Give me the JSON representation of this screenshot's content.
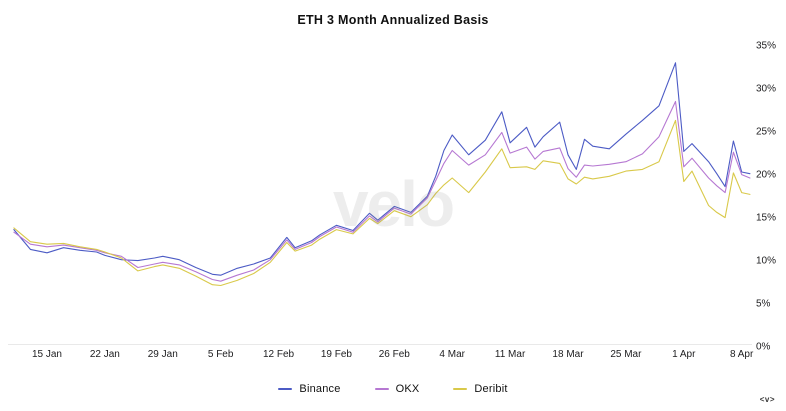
{
  "page": {
    "watermark": "velo",
    "logo": "<v>"
  },
  "chart_data": {
    "type": "line",
    "title": "ETH 3 Month Annualized Basis",
    "xlabel": "",
    "ylabel": "",
    "ylim": [
      0,
      35
    ],
    "grid": false,
    "legend_position": "bottom",
    "y_ticks": [
      "35%",
      "30%",
      "25%",
      "20%",
      "15%",
      "10%",
      "5%",
      "0%"
    ],
    "x_ticks": [
      {
        "label": "15 Jan",
        "day": 4
      },
      {
        "label": "22 Jan",
        "day": 11
      },
      {
        "label": "29 Jan",
        "day": 18
      },
      {
        "label": "5 Feb",
        "day": 25
      },
      {
        "label": "12 Feb",
        "day": 32
      },
      {
        "label": "19 Feb",
        "day": 39
      },
      {
        "label": "26 Feb",
        "day": 46
      },
      {
        "label": "4 Mar",
        "day": 53
      },
      {
        "label": "11 Mar",
        "day": 60
      },
      {
        "label": "18 Mar",
        "day": 67
      },
      {
        "label": "25 Mar",
        "day": 74
      },
      {
        "label": "1 Apr",
        "day": 81
      },
      {
        "label": "8 Apr",
        "day": 88
      }
    ],
    "dates": [
      "11 Jan",
      "13 Jan",
      "15 Jan",
      "17 Jan",
      "19 Jan",
      "21 Jan",
      "22 Jan",
      "24 Jan",
      "26 Jan",
      "28 Jan",
      "29 Jan",
      "31 Jan",
      "2 Feb",
      "4 Feb",
      "5 Feb",
      "7 Feb",
      "9 Feb",
      "11 Feb",
      "13 Feb",
      "14 Feb",
      "16 Feb",
      "17 Feb",
      "19 Feb",
      "21 Feb",
      "23 Feb",
      "24 Feb",
      "26 Feb",
      "28 Feb",
      "1 Mar",
      "2 Mar",
      "3 Mar",
      "4 Mar",
      "6 Mar",
      "8 Mar",
      "10 Mar",
      "11 Mar",
      "13 Mar",
      "14 Mar",
      "15 Mar",
      "17 Mar",
      "18 Mar",
      "19 Mar",
      "20 Mar",
      "21 Mar",
      "23 Mar",
      "25 Mar",
      "27 Mar",
      "29 Mar",
      "31 Mar",
      "1 Apr",
      "2 Apr",
      "4 Apr",
      "5 Apr",
      "6 Apr",
      "7 Apr",
      "8 Apr",
      "9 Apr"
    ],
    "x_days": [
      0,
      2,
      4,
      6,
      8,
      10,
      11,
      13,
      15,
      17,
      18,
      20,
      22,
      24,
      25,
      27,
      29,
      31,
      33,
      34,
      36,
      37,
      39,
      41,
      43,
      44,
      46,
      48,
      50,
      51,
      52,
      53,
      55,
      57,
      59,
      60,
      62,
      63,
      64,
      66,
      67,
      68,
      69,
      70,
      72,
      74,
      76,
      78,
      80,
      81,
      82,
      84,
      85,
      86,
      87,
      88,
      89
    ],
    "series": [
      {
        "name": "Binance",
        "color": "#4c5bc5",
        "values": [
          13.3,
          11.0,
          10.6,
          11.2,
          10.9,
          10.7,
          10.3,
          9.8,
          9.7,
          10.0,
          10.2,
          9.8,
          8.9,
          8.1,
          8.0,
          8.8,
          9.3,
          10.0,
          12.4,
          11.2,
          12.0,
          12.7,
          13.8,
          13.2,
          15.2,
          14.4,
          16.0,
          15.3,
          17.2,
          19.5,
          22.5,
          24.3,
          22.0,
          23.7,
          27.0,
          23.4,
          25.2,
          22.9,
          24.1,
          25.8,
          22.0,
          20.3,
          23.8,
          23.0,
          22.7,
          24.4,
          26.0,
          27.7,
          32.7,
          22.4,
          23.3,
          21.2,
          19.8,
          18.3,
          23.6,
          20.0,
          19.8
        ]
      },
      {
        "name": "OKX",
        "color": "#b678d2",
        "values": [
          13.0,
          11.6,
          11.3,
          11.5,
          11.2,
          10.9,
          10.6,
          10.2,
          8.9,
          9.3,
          9.5,
          9.2,
          8.4,
          7.5,
          7.3,
          8.0,
          8.6,
          9.8,
          12.1,
          11.0,
          11.8,
          12.5,
          13.6,
          13.0,
          14.9,
          14.2,
          15.8,
          15.1,
          17.0,
          19.0,
          21.0,
          22.5,
          20.8,
          22.0,
          24.6,
          22.2,
          22.9,
          21.5,
          22.4,
          22.8,
          20.4,
          19.4,
          20.8,
          20.7,
          20.9,
          21.2,
          22.1,
          24.1,
          28.2,
          20.6,
          21.6,
          19.3,
          18.4,
          17.6,
          22.3,
          19.7,
          19.3
        ]
      },
      {
        "name": "Deribit",
        "color": "#d9c94a",
        "values": [
          13.5,
          11.9,
          11.6,
          11.7,
          11.3,
          11.0,
          10.7,
          10.0,
          8.5,
          9.0,
          9.2,
          8.8,
          7.9,
          6.9,
          6.8,
          7.4,
          8.2,
          9.5,
          11.8,
          10.8,
          11.5,
          12.2,
          13.3,
          12.8,
          14.6,
          14.0,
          15.5,
          14.8,
          16.2,
          17.5,
          18.5,
          19.3,
          17.6,
          20.0,
          22.7,
          20.5,
          20.6,
          20.3,
          21.3,
          21.0,
          19.2,
          18.6,
          19.4,
          19.2,
          19.5,
          20.1,
          20.3,
          21.2,
          26.0,
          18.9,
          20.1,
          16.1,
          15.3,
          14.7,
          19.9,
          17.6,
          17.4
        ]
      }
    ]
  }
}
